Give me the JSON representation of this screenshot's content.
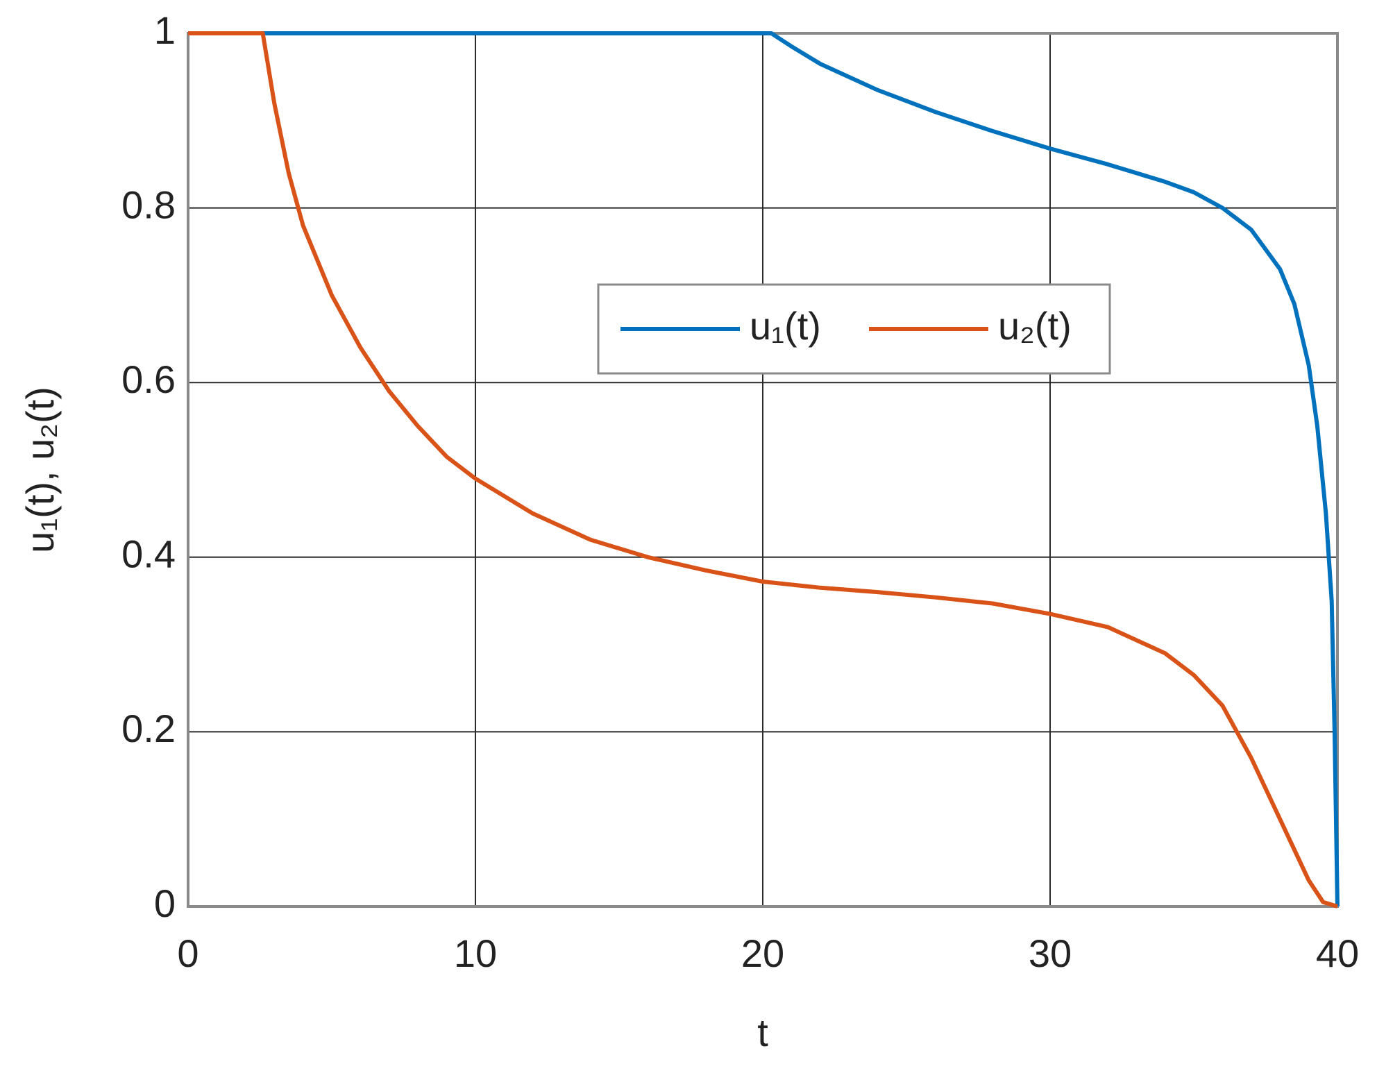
{
  "chart_data": {
    "type": "line",
    "xlabel": "t",
    "ylabel": "u₁(t), u₂(t)",
    "xlim": [
      0,
      40
    ],
    "ylim": [
      0,
      1
    ],
    "xticks": [
      0,
      10,
      20,
      30,
      40
    ],
    "yticks": [
      0,
      0.2,
      0.4,
      0.6,
      0.8,
      1
    ],
    "grid": true,
    "series": [
      {
        "name": "u₁(t)",
        "color": "#0072bd",
        "x": [
          0,
          20.3,
          21,
          22,
          24,
          26,
          28,
          30,
          32,
          34,
          35,
          36,
          37,
          38,
          38.5,
          39,
          39.3,
          39.6,
          39.8,
          39.9,
          40
        ],
        "values": [
          1,
          1,
          0.985,
          0.965,
          0.935,
          0.91,
          0.888,
          0.868,
          0.85,
          0.83,
          0.818,
          0.8,
          0.775,
          0.73,
          0.69,
          0.62,
          0.55,
          0.45,
          0.35,
          0.2,
          0
        ]
      },
      {
        "name": "u₂(t)",
        "color": "#d95319",
        "x": [
          0,
          2.6,
          2.8,
          3,
          3.5,
          4,
          5,
          6,
          7,
          8,
          9,
          10,
          12,
          14,
          16,
          18,
          20,
          22,
          24,
          26,
          28,
          30,
          32,
          34,
          35,
          36,
          37,
          38,
          39,
          39.5,
          40
        ],
        "values": [
          1,
          1,
          0.96,
          0.92,
          0.84,
          0.78,
          0.7,
          0.64,
          0.59,
          0.55,
          0.515,
          0.49,
          0.45,
          0.42,
          0.4,
          0.385,
          0.372,
          0.365,
          0.36,
          0.354,
          0.347,
          0.335,
          0.32,
          0.29,
          0.265,
          0.23,
          0.17,
          0.1,
          0.03,
          0.005,
          0
        ]
      }
    ]
  }
}
